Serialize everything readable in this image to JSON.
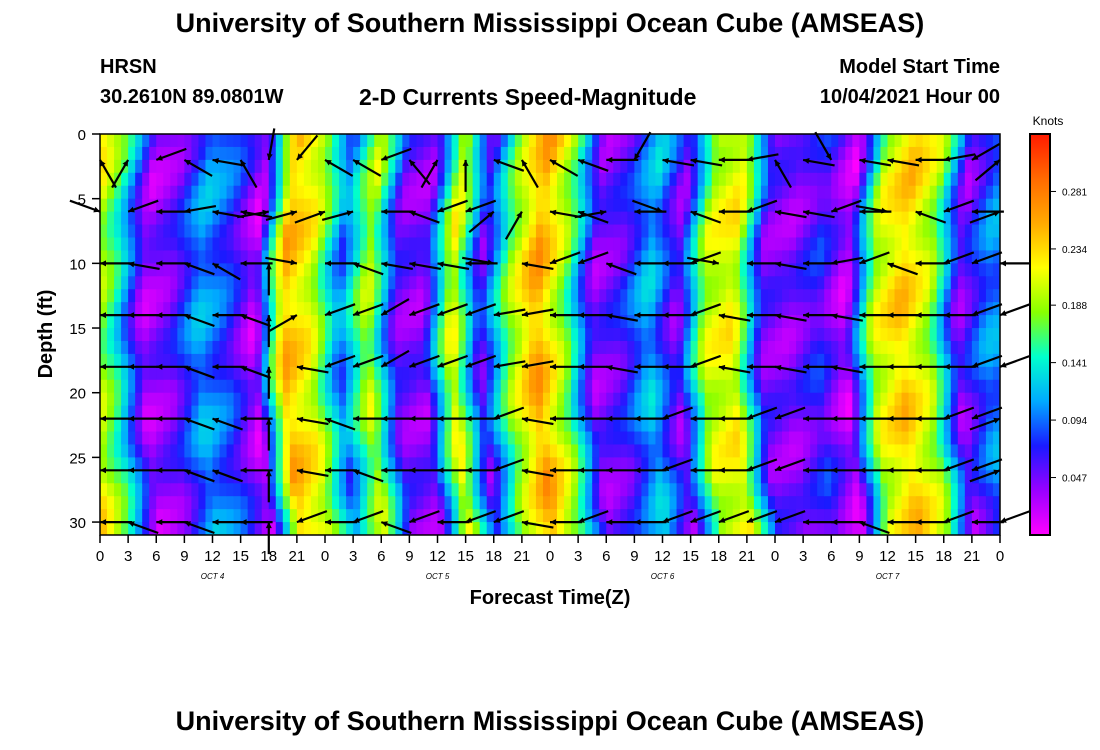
{
  "header": {
    "title": "University of Southern Mississippi Ocean Cube (AMSEAS)",
    "station": "HRSN",
    "coordinates": "30.2610N  89.0801W",
    "subtitle": "2-D Currents Speed-Magnitude",
    "model_start_label": "Model Start Time",
    "model_start_value": "10/04/2021 Hour 00"
  },
  "footer": {
    "title": "University of Southern Mississippi Ocean Cube (AMSEAS)"
  },
  "chart_data": {
    "type": "heatmap",
    "xlabel": "Forecast Time(Z)",
    "ylabel": "Depth (ft)",
    "x_tick_labels": [
      "0",
      "3",
      "6",
      "9",
      "12",
      "15",
      "18",
      "21",
      "0",
      "3",
      "6",
      "9",
      "12",
      "15",
      "18",
      "21",
      "0",
      "3",
      "6",
      "9",
      "12",
      "15",
      "18",
      "21",
      "0",
      "3",
      "6",
      "9",
      "12",
      "15",
      "18",
      "21",
      "0"
    ],
    "x_day_labels": [
      "OCT  4",
      "OCT  5",
      "OCT  6",
      "OCT  7"
    ],
    "y_ticks": [
      0,
      5,
      10,
      15,
      20,
      25,
      30
    ],
    "ylim": [
      0,
      31
    ],
    "time_step_hours": 3,
    "depths_ft": [
      2,
      6,
      10,
      14,
      18,
      22,
      26,
      30
    ],
    "colorbar": {
      "title": "Knots",
      "tick_labels": [
        "0.281",
        "0.234",
        "0.188",
        "0.141",
        "0.094",
        "0.047"
      ],
      "tick_values": [
        0.281,
        0.234,
        0.188,
        0.141,
        0.094,
        0.047
      ],
      "range": [
        0,
        0.328
      ],
      "colors": [
        "#ff00ff",
        "#9900ff",
        "#1a1aff",
        "#00aaff",
        "#00ffcc",
        "#88ff00",
        "#ffff00",
        "#ffaa00",
        "#ff6a00",
        "#ff1a00"
      ]
    },
    "speed_profile": [
      0.23,
      0.15,
      0.03,
      0.05,
      0.11,
      0.08,
      0.02,
      0.25,
      0.21,
      0.09,
      0.2,
      0.05,
      0.04,
      0.22,
      0.05,
      0.18,
      0.26,
      0.18,
      0.04,
      0.06,
      0.12,
      0.04,
      0.2,
      0.22,
      0.05,
      0.04,
      0.07,
      0.02,
      0.2,
      0.24,
      0.19,
      0.04,
      0.1
    ],
    "arrow_rows": [
      [
        120,
        60,
        200,
        150,
        170,
        120,
        260,
        230,
        150,
        150,
        200,
        130,
        60,
        90,
        160,
        120,
        150,
        160,
        180,
        240,
        170,
        170,
        180,
        190,
        120,
        170,
        300,
        170,
        170,
        180,
        190,
        210,
        40
      ],
      [
        340,
        200,
        180,
        190,
        170,
        170,
        10,
        15,
        20,
        15,
        180,
        160,
        200,
        200,
        40,
        60,
        170,
        160,
        10,
        180,
        340,
        160,
        180,
        200,
        170,
        170,
        200,
        180,
        350,
        160,
        200,
        180,
        20
      ],
      [
        180,
        170,
        180,
        160,
        150,
        180,
        90,
        350,
        180,
        160,
        170,
        170,
        170,
        180,
        350,
        170,
        200,
        200,
        160,
        180,
        180,
        200,
        350,
        180,
        170,
        180,
        190,
        200,
        160,
        180,
        200,
        200,
        180
      ],
      [
        180,
        180,
        180,
        160,
        180,
        160,
        90,
        30,
        200,
        200,
        210,
        200,
        200,
        200,
        190,
        190,
        180,
        180,
        170,
        180,
        180,
        200,
        170,
        180,
        170,
        180,
        170,
        180,
        180,
        180,
        180,
        200,
        200
      ],
      [
        180,
        180,
        180,
        160,
        180,
        160,
        90,
        170,
        200,
        200,
        210,
        200,
        200,
        200,
        190,
        190,
        180,
        180,
        170,
        180,
        180,
        200,
        170,
        180,
        170,
        180,
        170,
        180,
        180,
        180,
        180,
        200,
        200
      ],
      [
        180,
        180,
        180,
        160,
        160,
        180,
        90,
        170,
        160,
        180,
        180,
        180,
        180,
        180,
        200,
        170,
        180,
        180,
        180,
        180,
        200,
        180,
        180,
        200,
        200,
        180,
        180,
        180,
        180,
        180,
        200,
        200,
        20
      ],
      [
        180,
        180,
        180,
        160,
        160,
        180,
        90,
        170,
        180,
        160,
        180,
        180,
        180,
        180,
        200,
        170,
        180,
        180,
        180,
        180,
        200,
        180,
        180,
        200,
        200,
        180,
        180,
        180,
        180,
        180,
        200,
        200,
        20
      ],
      [
        180,
        160,
        180,
        160,
        180,
        180,
        90,
        200,
        180,
        200,
        160,
        200,
        180,
        200,
        200,
        170,
        180,
        200,
        180,
        180,
        200,
        200,
        200,
        200,
        200,
        180,
        180,
        160,
        180,
        180,
        200,
        180,
        200
      ]
    ]
  }
}
